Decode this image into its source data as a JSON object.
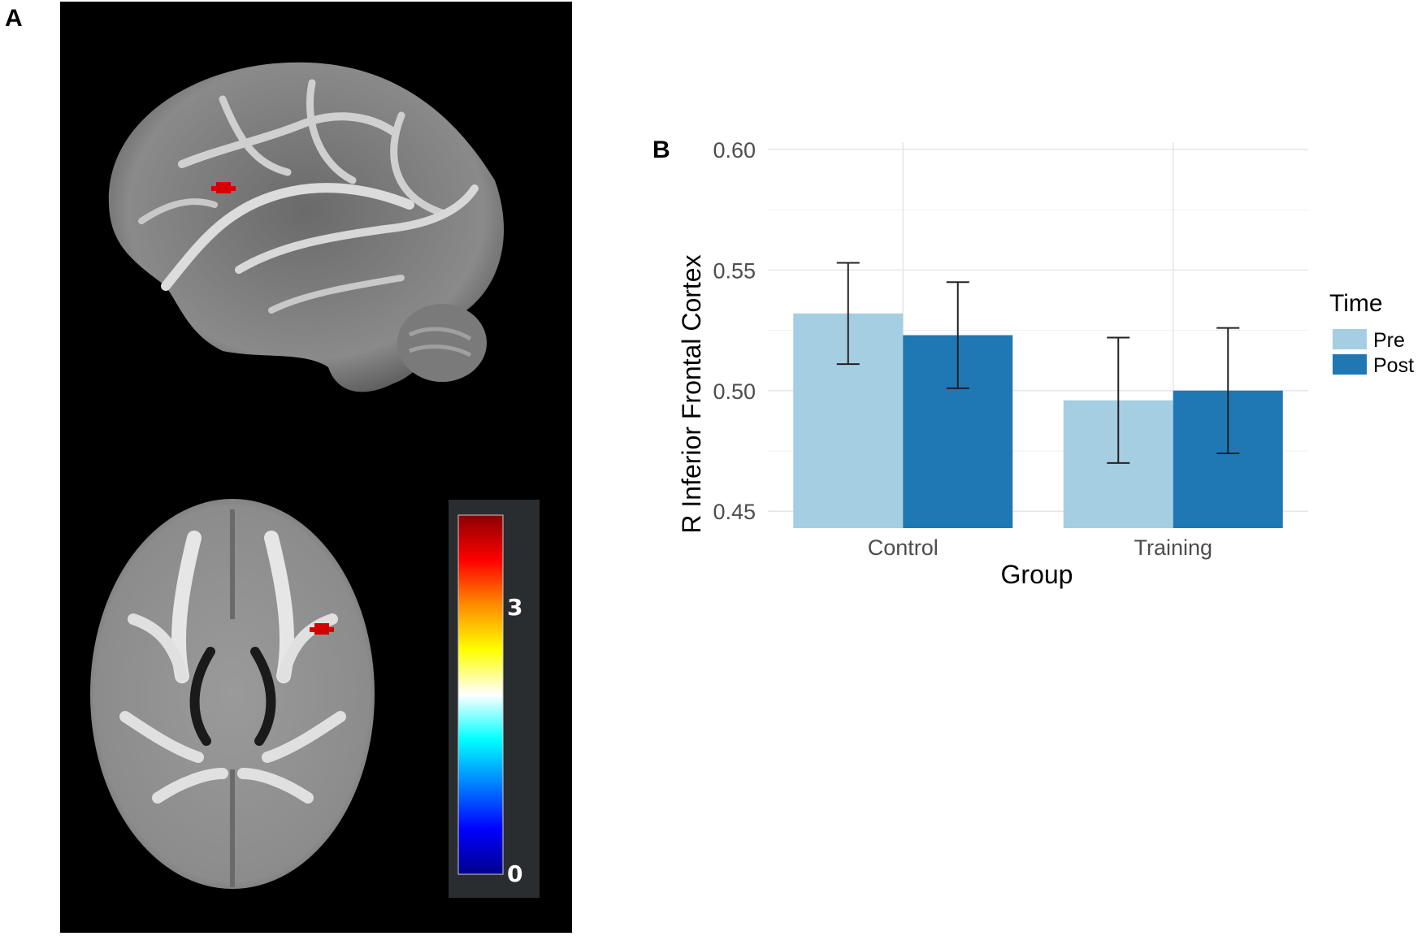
{
  "panels": {
    "a_label": "A",
    "b_label": "B"
  },
  "colorbar": {
    "tick_top": "3",
    "tick_bottom": "0",
    "stops": [
      "#8b0000",
      "#ff0000",
      "#ff8c00",
      "#ffff00",
      "#ffffff",
      "#00ffff",
      "#0080ff",
      "#0000ff",
      "#00008b"
    ]
  },
  "brain": {
    "overlay_color": "#d40000"
  },
  "chart_data": {
    "type": "bar",
    "title": "",
    "xlabel": "Group",
    "ylabel": "R Inferior Frontal Cortex",
    "categories": [
      "Control",
      "Training"
    ],
    "ylim": [
      0.443,
      0.603
    ],
    "yticks": [
      "0.45",
      "0.50",
      "0.55",
      "0.60"
    ],
    "grid": true,
    "legend": {
      "title": "Time",
      "placement": "right"
    },
    "series": [
      {
        "name": "Pre",
        "color": "#a6cee3",
        "values": [
          0.532,
          0.496
        ],
        "err_low": [
          0.511,
          0.47
        ],
        "err_high": [
          0.553,
          0.522
        ]
      },
      {
        "name": "Post",
        "color": "#1f78b4",
        "values": [
          0.523,
          0.5
        ],
        "err_low": [
          0.501,
          0.474
        ],
        "err_high": [
          0.545,
          0.526
        ]
      }
    ]
  }
}
